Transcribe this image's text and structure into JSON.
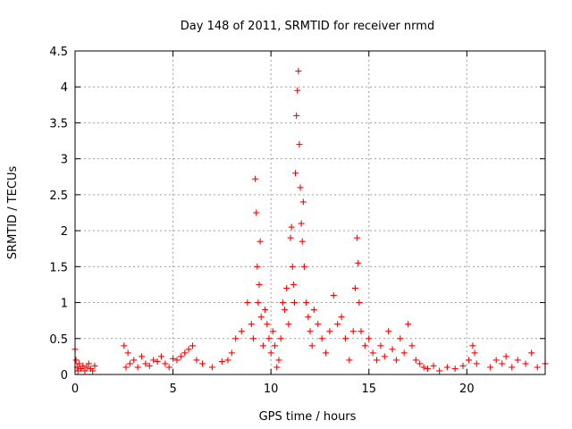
{
  "chart_data": {
    "type": "scatter",
    "title": "Day 148 of 2011, SRMTID for receiver nrmd",
    "xlabel": "GPS time / hours",
    "ylabel": "SRMTID / TECUs",
    "xlim": [
      0,
      24
    ],
    "ylim": [
      0,
      4.5
    ],
    "xticks": [
      0,
      5,
      10,
      15,
      20
    ],
    "xtick_labels": [
      "0",
      "5",
      "10",
      "15",
      "20"
    ],
    "yticks": [
      0,
      0.5,
      1,
      1.5,
      2,
      2.5,
      3,
      3.5,
      4,
      4.5
    ],
    "ytick_labels": [
      "0",
      "0.5",
      "1",
      "1.5",
      "2",
      "2.5",
      "3",
      "3.5",
      "4",
      "4.5"
    ],
    "grid": true,
    "marker": "plus",
    "color": "#ff0000",
    "series": [
      {
        "name": "SRMTID",
        "x": [
          0.0,
          0.05,
          0.1,
          0.15,
          0.2,
          0.3,
          0.4,
          0.5,
          0.6,
          0.7,
          0.8,
          0.9,
          1.0,
          2.5,
          2.6,
          2.7,
          2.8,
          3.0,
          3.2,
          3.4,
          3.6,
          3.8,
          4.0,
          4.2,
          4.4,
          4.6,
          4.8,
          5.0,
          5.2,
          5.4,
          5.6,
          5.8,
          6.0,
          6.2,
          6.5,
          7.0,
          7.5,
          7.8,
          8.0,
          8.2,
          8.5,
          8.8,
          9.0,
          9.1,
          9.2,
          9.25,
          9.3,
          9.35,
          9.4,
          9.45,
          9.5,
          9.6,
          9.7,
          9.8,
          9.9,
          10.0,
          10.1,
          10.2,
          10.3,
          10.4,
          10.5,
          10.6,
          10.7,
          10.8,
          10.9,
          11.0,
          11.05,
          11.1,
          11.15,
          11.2,
          11.25,
          11.3,
          11.35,
          11.4,
          11.45,
          11.5,
          11.55,
          11.6,
          11.65,
          11.7,
          11.8,
          11.9,
          12.0,
          12.1,
          12.2,
          12.4,
          12.6,
          12.8,
          13.0,
          13.2,
          13.4,
          13.6,
          13.8,
          14.0,
          14.2,
          14.3,
          14.4,
          14.45,
          14.5,
          14.6,
          14.8,
          15.0,
          15.2,
          15.4,
          15.6,
          15.8,
          16.0,
          16.2,
          16.4,
          16.6,
          16.8,
          17.0,
          17.2,
          17.4,
          17.6,
          17.8,
          18.0,
          18.3,
          18.6,
          19.0,
          19.4,
          19.8,
          20.1,
          20.3,
          20.4,
          20.5,
          21.2,
          21.5,
          21.8,
          22.0,
          22.3,
          22.6,
          23.0,
          23.3,
          23.6,
          24.0
        ],
        "y": [
          0.35,
          0.2,
          0.1,
          0.05,
          0.15,
          0.08,
          0.12,
          0.05,
          0.1,
          0.15,
          0.08,
          0.05,
          0.12,
          0.4,
          0.1,
          0.3,
          0.15,
          0.2,
          0.1,
          0.25,
          0.15,
          0.12,
          0.2,
          0.18,
          0.25,
          0.15,
          0.1,
          0.22,
          0.2,
          0.25,
          0.3,
          0.35,
          0.4,
          0.2,
          0.15,
          0.1,
          0.18,
          0.2,
          0.3,
          0.5,
          0.6,
          1.0,
          0.7,
          0.5,
          2.72,
          2.25,
          1.5,
          1.0,
          1.25,
          1.85,
          0.8,
          0.4,
          0.9,
          0.7,
          0.5,
          0.3,
          0.6,
          0.4,
          0.1,
          0.2,
          0.5,
          1.0,
          0.9,
          1.2,
          0.7,
          1.9,
          2.05,
          1.5,
          1.25,
          1.0,
          2.8,
          3.6,
          3.95,
          4.22,
          3.2,
          2.6,
          2.1,
          1.85,
          2.4,
          1.5,
          1.0,
          0.8,
          0.6,
          0.4,
          0.9,
          0.7,
          0.5,
          0.3,
          0.6,
          1.1,
          0.7,
          0.8,
          0.5,
          0.2,
          0.6,
          1.2,
          1.9,
          1.55,
          1.0,
          0.6,
          0.4,
          0.5,
          0.3,
          0.2,
          0.4,
          0.25,
          0.6,
          0.35,
          0.2,
          0.5,
          0.3,
          0.7,
          0.4,
          0.2,
          0.15,
          0.1,
          0.08,
          0.12,
          0.05,
          0.1,
          0.08,
          0.12,
          0.2,
          0.4,
          0.3,
          0.15,
          0.1,
          0.2,
          0.15,
          0.25,
          0.1,
          0.2,
          0.15,
          0.3,
          0.1,
          0.15
        ]
      }
    ]
  }
}
